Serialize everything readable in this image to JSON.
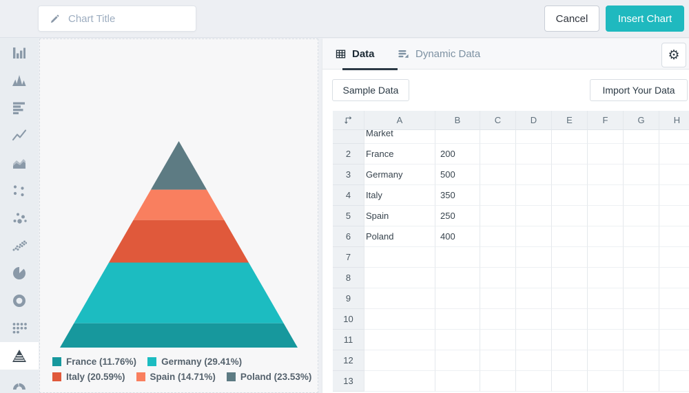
{
  "topbar": {
    "chart_title_placeholder": "Chart Title",
    "cancel_label": "Cancel",
    "insert_label": "Insert Chart",
    "accent_color": "#1fb9bf"
  },
  "sidebar": {
    "items": [
      {
        "name": "column-chart",
        "icon": "column-chart-icon",
        "active": false
      },
      {
        "name": "peak-chart",
        "icon": "peak-chart-icon",
        "active": false
      },
      {
        "name": "horizontal-bar-chart",
        "icon": "horizontal-bar-chart-icon",
        "active": false
      },
      {
        "name": "line-chart",
        "icon": "line-chart-icon",
        "active": false
      },
      {
        "name": "area-chart",
        "icon": "area-chart-icon",
        "active": false
      },
      {
        "name": "scatter-chart",
        "icon": "scatter-chart-icon",
        "active": false
      },
      {
        "name": "bubble-chart",
        "icon": "bubble-chart-icon",
        "active": false
      },
      {
        "name": "dot-plot-chart",
        "icon": "dot-plot-chart-icon",
        "active": false
      },
      {
        "name": "pie-chart",
        "icon": "pie-chart-icon",
        "active": false
      },
      {
        "name": "donut-chart",
        "icon": "donut-chart-icon",
        "active": false
      },
      {
        "name": "dot-matrix-chart",
        "icon": "dot-matrix-chart-icon",
        "active": false
      },
      {
        "name": "pyramid-chart",
        "icon": "pyramid-chart-icon",
        "active": true
      },
      {
        "name": "gauge-chart",
        "icon": "gauge-chart-icon",
        "active": false
      }
    ]
  },
  "panel": {
    "tabs": [
      {
        "label": "Data",
        "icon": "table-grid-icon",
        "active": true
      },
      {
        "label": "Dynamic Data",
        "icon": "dynamic-data-icon",
        "active": false
      }
    ],
    "sample_data_label": "Sample Data",
    "import_label": "Import Your Data",
    "grid": {
      "columns": [
        "A",
        "B",
        "C",
        "D",
        "E",
        "F",
        "G",
        "H"
      ],
      "rows": [
        {
          "n": "",
          "cells": {
            "A": "Market"
          }
        },
        {
          "n": "2",
          "cells": {
            "A": "France",
            "B": "200"
          }
        },
        {
          "n": "3",
          "cells": {
            "A": "Germany",
            "B": "500"
          }
        },
        {
          "n": "4",
          "cells": {
            "A": "Italy",
            "B": "350"
          }
        },
        {
          "n": "5",
          "cells": {
            "A": "Spain",
            "B": "250"
          }
        },
        {
          "n": "6",
          "cells": {
            "A": "Poland",
            "B": "400"
          }
        },
        {
          "n": "7",
          "cells": {}
        },
        {
          "n": "8",
          "cells": {}
        },
        {
          "n": "9",
          "cells": {}
        },
        {
          "n": "10",
          "cells": {}
        },
        {
          "n": "11",
          "cells": {}
        },
        {
          "n": "12",
          "cells": {}
        },
        {
          "n": "13",
          "cells": {}
        }
      ]
    }
  },
  "chart_data": {
    "type": "pyramid",
    "title": "",
    "categories": [
      "France",
      "Germany",
      "Italy",
      "Spain",
      "Poland"
    ],
    "values": [
      200,
      500,
      350,
      250,
      400
    ],
    "percent_of_total": [
      11.76,
      29.41,
      20.59,
      14.71,
      23.53
    ],
    "segments_top_to_bottom": [
      {
        "label": "Poland",
        "percent": 23.53,
        "color": "#5d7b83"
      },
      {
        "label": "Spain",
        "percent": 14.71,
        "color": "#f97f5f"
      },
      {
        "label": "Italy",
        "percent": 20.59,
        "color": "#e0593b"
      },
      {
        "label": "Germany",
        "percent": 29.41,
        "color": "#1cbcc1"
      },
      {
        "label": "France",
        "percent": 11.76,
        "color": "#17989d"
      }
    ],
    "legend": [
      {
        "label": "France (11.76%)",
        "color": "#17989d"
      },
      {
        "label": "Germany (29.41%)",
        "color": "#1cbcc1"
      },
      {
        "label": "Italy (20.59%)",
        "color": "#e0593b"
      },
      {
        "label": "Spain (14.71%)",
        "color": "#f97f5f"
      },
      {
        "label": "Poland (23.53%)",
        "color": "#5d7b83"
      }
    ],
    "legend_position": "bottom-left"
  }
}
